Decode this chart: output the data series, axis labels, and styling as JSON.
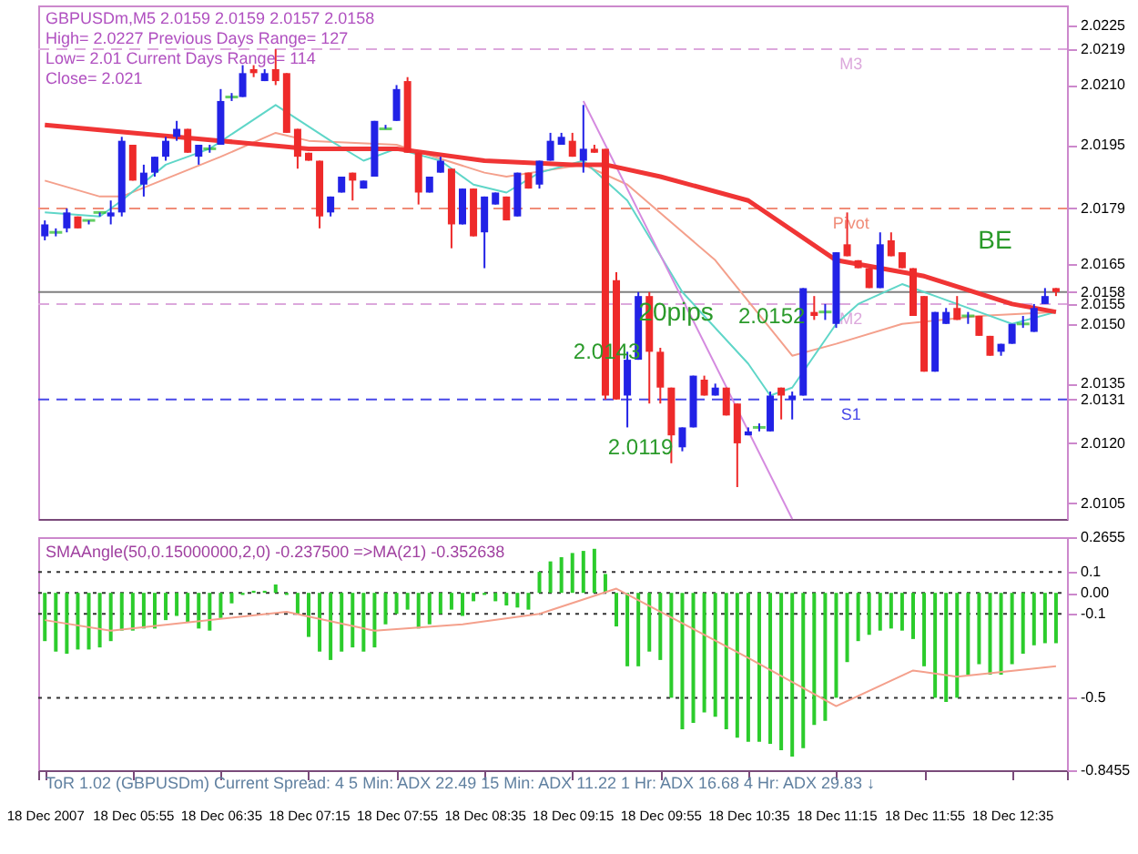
{
  "chart_data": [
    {
      "type": "candlestick",
      "x": [
        "2007-12-18T05:15",
        "2007-12-18T05:20",
        "2007-12-18T05:25",
        "2007-12-18T05:30",
        "2007-12-18T05:35",
        "2007-12-18T05:40",
        "2007-12-18T05:45",
        "2007-12-18T05:50",
        "2007-12-18T05:55",
        "2007-12-18T06:00",
        "2007-12-18T06:05",
        "2007-12-18T06:10",
        "2007-12-18T06:15",
        "2007-12-18T06:20",
        "2007-12-18T06:25",
        "2007-12-18T06:30",
        "2007-12-18T06:35",
        "2007-12-18T06:40",
        "2007-12-18T06:45",
        "2007-12-18T06:50",
        "2007-12-18T06:55",
        "2007-12-18T07:00",
        "2007-12-18T07:05",
        "2007-12-18T07:10",
        "2007-12-18T07:15",
        "2007-12-18T07:20",
        "2007-12-18T07:25",
        "2007-12-18T07:30",
        "2007-12-18T07:35",
        "2007-12-18T07:40",
        "2007-12-18T07:45",
        "2007-12-18T07:50",
        "2007-12-18T07:55",
        "2007-12-18T08:00",
        "2007-12-18T08:05",
        "2007-12-18T08:10",
        "2007-12-18T08:15",
        "2007-12-18T08:20",
        "2007-12-18T08:25",
        "2007-12-18T08:30",
        "2007-12-18T08:35",
        "2007-12-18T08:40",
        "2007-12-18T08:45",
        "2007-12-18T08:50",
        "2007-12-18T08:55",
        "2007-12-18T09:00",
        "2007-12-18T09:05",
        "2007-12-18T09:10",
        "2007-12-18T09:15",
        "2007-12-18T09:20",
        "2007-12-18T09:25",
        "2007-12-18T09:30",
        "2007-12-18T09:35",
        "2007-12-18T09:40",
        "2007-12-18T09:45",
        "2007-12-18T09:50",
        "2007-12-18T09:55",
        "2007-12-18T10:00",
        "2007-12-18T10:05",
        "2007-12-18T10:10",
        "2007-12-18T10:15",
        "2007-12-18T10:20",
        "2007-12-18T10:25",
        "2007-12-18T10:30",
        "2007-12-18T10:35",
        "2007-12-18T10:40",
        "2007-12-18T10:45",
        "2007-12-18T10:50",
        "2007-12-18T10:55",
        "2007-12-18T11:00",
        "2007-12-18T11:05",
        "2007-12-18T11:10",
        "2007-12-18T11:15",
        "2007-12-18T11:20",
        "2007-12-18T11:25",
        "2007-12-18T11:30",
        "2007-12-18T11:35",
        "2007-12-18T11:40",
        "2007-12-18T11:45",
        "2007-12-18T11:50",
        "2007-12-18T11:55",
        "2007-12-18T12:00",
        "2007-12-18T12:05",
        "2007-12-18T12:10",
        "2007-12-18T12:15",
        "2007-12-18T12:20",
        "2007-12-18T12:25",
        "2007-12-18T12:30",
        "2007-12-18T12:35",
        "2007-12-18T12:40",
        "2007-12-18T12:45",
        "2007-12-18T12:50",
        "2007-12-18T12:55"
      ],
      "ohlc": [
        [
          2.0172,
          2.0176,
          2.0171,
          2.0175
        ],
        [
          2.0173,
          2.0174,
          2.0172,
          2.0173
        ],
        [
          2.0174,
          2.0179,
          2.0173,
          2.0178
        ],
        [
          2.0177,
          2.0177,
          2.0174,
          2.0174
        ],
        [
          2.0176,
          2.0176,
          2.0175,
          2.0176
        ],
        [
          2.0178,
          2.0178,
          2.0177,
          2.0178
        ],
        [
          2.0177,
          2.0181,
          2.0175,
          2.0178
        ],
        [
          2.0178,
          2.0197,
          2.0177,
          2.0196
        ],
        [
          2.0195,
          2.0195,
          2.0186,
          2.0186
        ],
        [
          2.0185,
          2.019,
          2.0182,
          2.0188
        ],
        [
          2.0188,
          2.0192,
          2.0187,
          2.0192
        ],
        [
          2.0192,
          2.0197,
          2.0191,
          2.0196
        ],
        [
          2.0197,
          2.0201,
          2.0196,
          2.0199
        ],
        [
          2.0199,
          2.0199,
          2.0193,
          2.0193
        ],
        [
          2.0192,
          2.0195,
          2.019,
          2.0195
        ],
        [
          2.0194,
          2.0195,
          2.0193,
          2.0194
        ],
        [
          2.0195,
          2.0209,
          2.0195,
          2.0206
        ],
        [
          2.0207,
          2.0208,
          2.0206,
          2.0207
        ],
        [
          2.0207,
          2.0215,
          2.0207,
          2.0213
        ],
        [
          2.0214,
          2.0215,
          2.0212,
          2.0213
        ],
        [
          2.0211,
          2.0214,
          2.0211,
          2.0213
        ],
        [
          2.0214,
          2.0219,
          2.021,
          2.0211
        ],
        [
          2.0213,
          2.0213,
          2.0198,
          2.0198
        ],
        [
          2.0199,
          2.0199,
          2.0189,
          2.0192
        ],
        [
          2.0193,
          2.0193,
          2.0191,
          2.0191
        ],
        [
          2.0191,
          2.0191,
          2.0174,
          2.0177
        ],
        [
          2.0178,
          2.0182,
          2.0177,
          2.0182
        ],
        [
          2.0183,
          2.0187,
          2.0183,
          2.0187
        ],
        [
          2.0188,
          2.0188,
          2.0181,
          2.0186
        ],
        [
          2.0184,
          2.0186,
          2.0184,
          2.0186
        ],
        [
          2.0187,
          2.0201,
          2.0187,
          2.0201
        ],
        [
          2.0199,
          2.02,
          2.0199,
          2.0199
        ],
        [
          2.0201,
          2.021,
          2.0201,
          2.0209
        ],
        [
          2.0211,
          2.0212,
          2.0193,
          2.0193
        ],
        [
          2.0193,
          2.0193,
          2.018,
          2.0183
        ],
        [
          2.0183,
          2.0187,
          2.0183,
          2.0187
        ],
        [
          2.0188,
          2.0192,
          2.0188,
          2.0191
        ],
        [
          2.0189,
          2.0189,
          2.0169,
          2.0175
        ],
        [
          2.0175,
          2.0184,
          2.0175,
          2.0184
        ],
        [
          2.0184,
          2.0184,
          2.0172,
          2.0172
        ],
        [
          2.0173,
          2.0182,
          2.0164,
          2.0182
        ],
        [
          2.018,
          2.0183,
          2.018,
          2.0183
        ],
        [
          2.0182,
          2.0182,
          2.0176,
          2.0176
        ],
        [
          2.0177,
          2.0188,
          2.0177,
          2.0188
        ],
        [
          2.0188,
          2.0188,
          2.0184,
          2.0184
        ],
        [
          2.0185,
          2.0191,
          2.0184,
          2.0191
        ],
        [
          2.0191,
          2.0198,
          2.0191,
          2.0196
        ],
        [
          2.0195,
          2.0198,
          2.0195,
          2.0197
        ],
        [
          2.0196,
          2.0198,
          2.0192,
          2.0192
        ],
        [
          2.0191,
          2.0205,
          2.0188,
          2.0194
        ],
        [
          2.0194,
          2.0195,
          2.0193,
          2.0193
        ],
        [
          2.0194,
          2.0194,
          2.0131,
          2.0132
        ],
        [
          2.0161,
          2.0163,
          2.0131,
          2.0131
        ],
        [
          2.0132,
          2.0143,
          2.0124,
          2.0141
        ],
        [
          2.0141,
          2.0158,
          2.0141,
          2.0157
        ],
        [
          2.0157,
          2.0158,
          2.013,
          2.0143
        ],
        [
          2.0143,
          2.0144,
          2.013,
          2.0134
        ],
        [
          2.0134,
          2.0134,
          2.0115,
          2.0122
        ],
        [
          2.0119,
          2.0124,
          2.0118,
          2.0124
        ],
        [
          2.0124,
          2.0137,
          2.0124,
          2.0137
        ],
        [
          2.0136,
          2.0137,
          2.0132,
          2.0132
        ],
        [
          2.0132,
          2.0135,
          2.0132,
          2.0134
        ],
        [
          2.0134,
          2.0134,
          2.0127,
          2.0127
        ],
        [
          2.013,
          2.013,
          2.0109,
          2.012
        ],
        [
          2.0122,
          2.0124,
          2.0122,
          2.0123
        ],
        [
          2.0124,
          2.0125,
          2.0123,
          2.0124
        ],
        [
          2.0123,
          2.0133,
          2.0123,
          2.0132
        ],
        [
          2.0134,
          2.0134,
          2.0126,
          2.0132
        ],
        [
          2.0131,
          2.0133,
          2.0126,
          2.0132
        ],
        [
          2.0132,
          2.0159,
          2.0132,
          2.0159
        ],
        [
          2.0153,
          2.0157,
          2.0151,
          2.0152
        ],
        [
          2.0153,
          2.0155,
          2.0151,
          2.0153
        ],
        [
          2.015,
          2.0168,
          2.0149,
          2.0168
        ],
        [
          2.017,
          2.0178,
          2.0167,
          2.0167
        ],
        [
          2.0166,
          2.0166,
          2.0164,
          2.0164
        ],
        [
          2.0164,
          2.0164,
          2.0159,
          2.0159
        ],
        [
          2.0159,
          2.0173,
          2.0159,
          2.017
        ],
        [
          2.0171,
          2.0173,
          2.0167,
          2.0167
        ],
        [
          2.0168,
          2.0168,
          2.0164,
          2.0164
        ],
        [
          2.0164,
          2.0164,
          2.0152,
          2.0152
        ],
        [
          2.0157,
          2.0157,
          2.0138,
          2.0138
        ],
        [
          2.0138,
          2.0153,
          2.0138,
          2.0153
        ],
        [
          2.015,
          2.0154,
          2.015,
          2.0153
        ],
        [
          2.0154,
          2.0157,
          2.0151,
          2.0151
        ],
        [
          2.0152,
          2.0153,
          2.015,
          2.0152
        ],
        [
          2.0152,
          2.0152,
          2.0147,
          2.0147
        ],
        [
          2.0147,
          2.0147,
          2.0142,
          2.0142
        ],
        [
          2.0143,
          2.0145,
          2.0142,
          2.0145
        ],
        [
          2.0145,
          2.015,
          2.0145,
          2.015
        ],
        [
          2.015,
          2.0152,
          2.0149,
          2.015
        ],
        [
          2.0148,
          2.0155,
          2.0148,
          2.0154
        ],
        [
          2.0155,
          2.0159,
          2.0155,
          2.0157
        ],
        [
          2.0159,
          2.0159,
          2.0157,
          2.0158
        ]
      ],
      "series": [
        {
          "type": "line",
          "color": "#f4a08c",
          "x": [
            "2007-12-18T05:15",
            "2007-12-18T05:40",
            "2007-12-18T05:50",
            "2007-12-18T06:35",
            "2007-12-18T07:00",
            "2007-12-18T07:15",
            "2007-12-18T07:55",
            "2007-12-18T08:35",
            "2007-12-18T08:45",
            "2007-12-18T09:20",
            "2007-12-18T09:40",
            "2007-12-18T10:20",
            "2007-12-18T10:55",
            "2007-12-18T11:15",
            "2007-12-18T11:45",
            "2007-12-18T12:20",
            "2007-12-18T12:55"
          ],
          "values": [
            2.0186,
            2.0182,
            2.0182,
            2.0192,
            2.0198,
            2.0196,
            2.0195,
            2.0188,
            2.0187,
            2.019,
            2.0185,
            2.0166,
            2.0142,
            2.0145,
            2.015,
            2.0152,
            2.0153
          ]
        },
        {
          "type": "line",
          "color": "#5fd6c8",
          "x": [
            "2007-12-18T05:15",
            "2007-12-18T05:40",
            "2007-12-18T05:50",
            "2007-12-18T06:10",
            "2007-12-18T06:30",
            "2007-12-18T07:00",
            "2007-12-18T07:25",
            "2007-12-18T07:40",
            "2007-12-18T07:55",
            "2007-12-18T08:15",
            "2007-12-18T08:30",
            "2007-12-18T08:45",
            "2007-12-18T09:00",
            "2007-12-18T09:20",
            "2007-12-18T09:40",
            "2007-12-18T10:05",
            "2007-12-18T10:35",
            "2007-12-18T10:45",
            "2007-12-18T10:55",
            "2007-12-18T11:15",
            "2007-12-18T11:25",
            "2007-12-18T11:45",
            "2007-12-18T12:00",
            "2007-12-18T12:20",
            "2007-12-18T12:35",
            "2007-12-18T12:55"
          ],
          "values": [
            2.0178,
            2.0177,
            2.0181,
            2.019,
            2.0194,
            2.0205,
            2.0196,
            2.0191,
            2.0194,
            2.0191,
            2.0185,
            2.0183,
            2.0188,
            2.0191,
            2.0181,
            2.0158,
            2.014,
            2.0132,
            2.0134,
            2.015,
            2.0155,
            2.016,
            2.0157,
            2.0153,
            2.015,
            2.0153
          ]
        },
        {
          "type": "line",
          "color": "#d58be0",
          "x": [
            "2007-12-18T09:20",
            "2007-12-18T10:55"
          ],
          "values": [
            2.0206,
            2.0101
          ]
        },
        {
          "type": "line",
          "color": "#f03535",
          "x": [
            "2007-12-18T05:15",
            "2007-12-18T05:55",
            "2007-12-18T06:35",
            "2007-12-18T07:15",
            "2007-12-18T07:55",
            "2007-12-18T08:35",
            "2007-12-18T09:15",
            "2007-12-18T09:30",
            "2007-12-18T09:55",
            "2007-12-18T10:35",
            "2007-12-18T11:15",
            "2007-12-18T11:55",
            "2007-12-18T12:35",
            "2007-12-18T12:55"
          ],
          "values": [
            2.02,
            2.0198,
            2.0196,
            2.0194,
            2.0194,
            2.0191,
            2.019,
            2.019,
            2.0187,
            2.0181,
            2.0166,
            2.0162,
            2.0155,
            2.0153
          ]
        }
      ],
      "xlim": [
        "2007-12-18T05:12",
        "2007-12-18T13:00"
      ],
      "ylim": [
        2.0101,
        2.023
      ],
      "yticks": [
        2.0225,
        2.0219,
        {
          "value": 2.021,
          "label": "2.0210"
        },
        2.0195,
        2.0179,
        2.0165,
        2.0158,
        2.0155,
        {
          "value": 2.015,
          "label": "2.0150"
        },
        2.0135,
        2.0131,
        {
          "value": 2.012,
          "label": "2.0120"
        },
        2.0105
      ],
      "tick_labels": "y",
      "ref_lines": [
        {
          "axis": "y",
          "value": 2.0219,
          "label": "M3",
          "color": "#dca8dc",
          "line_style": "dashed"
        },
        {
          "axis": "y",
          "value": 2.0179,
          "label": "Pivot",
          "color": "#f08c78",
          "line_style": "dashed"
        },
        {
          "axis": "y",
          "value": 2.0158,
          "color": "#808080",
          "line_style": "solid"
        },
        {
          "axis": "y",
          "value": 2.0155,
          "label": "M2",
          "color": "#dca8dc",
          "line_style": "dashed"
        },
        {
          "axis": "y",
          "value": 2.0131,
          "label": "S1",
          "color": "#4848e8",
          "line_style": "dashed"
        }
      ],
      "annotations": [
        "GBPUSDm,M5  2.0159 2.0159 2.0157 2.0158",
        "High= 2.0227    Previous Days Range= 127",
        "Low= 2.01    Current Days Range= 114",
        "Close= 2.021",
        {
          "text": "2.0143",
          "x": "2007-12-18T09:50",
          "y": 2.0143
        },
        {
          "text": "2.0119",
          "x": "2007-12-18T10:05",
          "y": 2.0119
        },
        "20pips",
        {
          "text": "2.0152",
          "x": "2007-12-18T11:05",
          "y": 2.0152
        },
        "BE"
      ],
      "grid": false
    },
    {
      "type": "bar",
      "title": "SMAAngle(50,0.15000000,2,0) -0.237500  =>MA(21) -0.352638",
      "x": [
        "2007-12-18T05:15",
        "2007-12-18T05:20",
        "2007-12-18T05:25",
        "2007-12-18T05:30",
        "2007-12-18T05:35",
        "2007-12-18T05:40",
        "2007-12-18T05:45",
        "2007-12-18T05:50",
        "2007-12-18T05:55",
        "2007-12-18T06:00",
        "2007-12-18T06:05",
        "2007-12-18T06:10",
        "2007-12-18T06:15",
        "2007-12-18T06:20",
        "2007-12-18T06:25",
        "2007-12-18T06:30",
        "2007-12-18T06:35",
        "2007-12-18T06:40",
        "2007-12-18T06:45",
        "2007-12-18T06:50",
        "2007-12-18T06:55",
        "2007-12-18T07:00",
        "2007-12-18T07:05",
        "2007-12-18T07:10",
        "2007-12-18T07:15",
        "2007-12-18T07:20",
        "2007-12-18T07:25",
        "2007-12-18T07:30",
        "2007-12-18T07:35",
        "2007-12-18T07:40",
        "2007-12-18T07:45",
        "2007-12-18T07:50",
        "2007-12-18T07:55",
        "2007-12-18T08:00",
        "2007-12-18T08:05",
        "2007-12-18T08:10",
        "2007-12-18T08:15",
        "2007-12-18T08:20",
        "2007-12-18T08:25",
        "2007-12-18T08:30",
        "2007-12-18T08:35",
        "2007-12-18T08:40",
        "2007-12-18T08:45",
        "2007-12-18T08:50",
        "2007-12-18T08:55",
        "2007-12-18T09:00",
        "2007-12-18T09:05",
        "2007-12-18T09:10",
        "2007-12-18T09:15",
        "2007-12-18T09:20",
        "2007-12-18T09:25",
        "2007-12-18T09:30",
        "2007-12-18T09:35",
        "2007-12-18T09:40",
        "2007-12-18T09:45",
        "2007-12-18T09:50",
        "2007-12-18T09:55",
        "2007-12-18T10:00",
        "2007-12-18T10:05",
        "2007-12-18T10:10",
        "2007-12-18T10:15",
        "2007-12-18T10:20",
        "2007-12-18T10:25",
        "2007-12-18T10:30",
        "2007-12-18T10:35",
        "2007-12-18T10:40",
        "2007-12-18T10:45",
        "2007-12-18T10:50",
        "2007-12-18T10:55",
        "2007-12-18T11:00",
        "2007-12-18T11:05",
        "2007-12-18T11:10",
        "2007-12-18T11:15",
        "2007-12-18T11:20",
        "2007-12-18T11:25",
        "2007-12-18T11:30",
        "2007-12-18T11:35",
        "2007-12-18T11:40",
        "2007-12-18T11:45",
        "2007-12-18T11:50",
        "2007-12-18T11:55",
        "2007-12-18T12:00",
        "2007-12-18T12:05",
        "2007-12-18T12:10",
        "2007-12-18T12:15",
        "2007-12-18T12:20",
        "2007-12-18T12:25",
        "2007-12-18T12:30",
        "2007-12-18T12:35",
        "2007-12-18T12:40",
        "2007-12-18T12:45",
        "2007-12-18T12:50",
        "2007-12-18T12:55"
      ],
      "series": [
        {
          "color": "#2ccc2c",
          "values": [
            -0.23,
            -0.28,
            -0.29,
            -0.27,
            -0.27,
            -0.26,
            -0.23,
            -0.18,
            -0.18,
            -0.17,
            -0.17,
            -0.13,
            -0.11,
            -0.14,
            -0.17,
            -0.18,
            -0.12,
            -0.05,
            -0.01,
            0.01,
            0.01,
            0.04,
            -0.01,
            -0.1,
            -0.21,
            -0.28,
            -0.32,
            -0.28,
            -0.26,
            -0.28,
            -0.26,
            -0.15,
            -0.1,
            -0.08,
            -0.17,
            -0.15,
            -0.1,
            -0.08,
            -0.11,
            -0.04,
            -0.01,
            -0.04,
            -0.06,
            -0.07,
            -0.08,
            0.1,
            0.15,
            0.17,
            0.19,
            0.2,
            0.21,
            0.09,
            -0.16,
            -0.35,
            -0.35,
            -0.28,
            -0.32,
            -0.5,
            -0.65,
            -0.62,
            -0.57,
            -0.59,
            -0.65,
            -0.69,
            -0.71,
            -0.71,
            -0.72,
            -0.75,
            -0.78,
            -0.74,
            -0.63,
            -0.61,
            -0.5,
            -0.33,
            -0.23,
            -0.2,
            -0.18,
            -0.17,
            -0.18,
            -0.22,
            -0.35,
            -0.5,
            -0.52,
            -0.5,
            -0.39,
            -0.34,
            -0.39,
            -0.39,
            -0.34,
            -0.29,
            -0.25,
            -0.24,
            -0.24
          ]
        },
        {
          "type": "line",
          "color": "#f4a08c",
          "x": [
            "2007-12-18T05:15",
            "2007-12-18T05:45",
            "2007-12-18T07:05",
            "2007-12-18T07:45",
            "2007-12-18T08:25",
            "2007-12-18T09:00",
            "2007-12-18T09:35",
            "2007-12-18T10:35",
            "2007-12-18T11:15",
            "2007-12-18T11:50",
            "2007-12-18T12:10",
            "2007-12-18T12:55"
          ],
          "values": [
            -0.13,
            -0.18,
            -0.09,
            -0.18,
            -0.15,
            -0.1,
            0.02,
            -0.31,
            -0.54,
            -0.37,
            -0.4,
            -0.35
          ]
        }
      ],
      "xlim": [
        "2007-12-18T05:12",
        "2007-12-18T13:00"
      ],
      "xticks": [
        {
          "value": "2007-12-18T05:12",
          "label": null
        },
        {
          "value": "2007-12-18T05:15",
          "label": "18 Dec 2007"
        },
        {
          "value": "2007-12-18T05:55",
          "label": "18 Dec 05:55"
        },
        {
          "value": "2007-12-18T06:35",
          "label": "18 Dec 06:35"
        },
        {
          "value": "2007-12-18T07:15",
          "label": "18 Dec 07:15"
        },
        {
          "value": "2007-12-18T07:55",
          "label": "18 Dec 07:55"
        },
        {
          "value": "2007-12-18T08:35",
          "label": "18 Dec 08:35"
        },
        {
          "value": "2007-12-18T09:15",
          "label": "18 Dec 09:15"
        },
        {
          "value": "2007-12-18T09:55",
          "label": "18 Dec 09:55"
        },
        {
          "value": "2007-12-18T10:35",
          "label": "18 Dec 10:35"
        },
        {
          "value": "2007-12-18T11:15",
          "label": "18 Dec 11:15"
        },
        {
          "value": "2007-12-18T11:55",
          "label": "18 Dec 11:55"
        },
        {
          "value": "2007-12-18T12:35",
          "label": "18 Dec 12:35"
        },
        {
          "value": "2007-12-18T13:00",
          "label": null
        }
      ],
      "ylim": [
        -0.8455,
        0.2655
      ],
      "yticks": [
        0.2655,
        0.1,
        {
          "value": 0,
          "label": "0.00"
        },
        -0.1,
        -0.5,
        -0.8455
      ],
      "ref_lines": [
        {
          "axis": "y",
          "value": 0.1,
          "color": "#333333",
          "line_style": "dotted"
        },
        {
          "axis": "y",
          "value": 0,
          "color": "#333333",
          "line_style": "dotted"
        },
        {
          "axis": "y",
          "value": -0.1,
          "color": "#333333",
          "line_style": "dotted"
        },
        {
          "axis": "y",
          "value": -0.5,
          "color": "#333333",
          "line_style": "dotted"
        }
      ],
      "annotations": [
        "ToR 1.02 (GBPUSDm)   Current Spread: 4    5 Min: ADX 22.49    15 Min: ADX 11.22    1 Hr: ADX 16.68    4 Hr: ADX 29.83 ↓"
      ],
      "grid": false
    }
  ]
}
